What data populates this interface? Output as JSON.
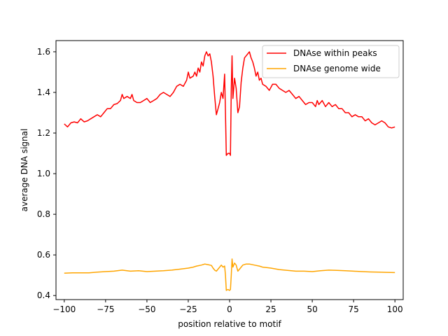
{
  "chart_data": {
    "type": "line",
    "title": "",
    "xlabel": "position relative to motif",
    "ylabel": "average DNA signal",
    "xlim": [
      -105,
      105
    ],
    "ylim": [
      0.38,
      1.655
    ],
    "x_ticks": [
      -100,
      -75,
      -50,
      -25,
      0,
      25,
      50,
      75,
      100
    ],
    "x_tick_labels": [
      "−100",
      "−75",
      "−50",
      "−25",
      "0",
      "25",
      "50",
      "75",
      "100"
    ],
    "y_ticks": [
      0.4,
      0.6,
      0.8,
      1.0,
      1.2,
      1.4,
      1.6
    ],
    "y_tick_labels": [
      "0.4",
      "0.6",
      "0.8",
      "1.0",
      "1.2",
      "1.4",
      "1.6"
    ],
    "grid": false,
    "legend_position": "top-right",
    "series": [
      {
        "name": "DNAse within peaks",
        "color": "#ff0000",
        "points": [
          [
            -100,
            1.245
          ],
          [
            -98,
            1.23
          ],
          [
            -96,
            1.25
          ],
          [
            -94,
            1.255
          ],
          [
            -92,
            1.25
          ],
          [
            -90,
            1.27
          ],
          [
            -88,
            1.255
          ],
          [
            -86,
            1.26
          ],
          [
            -84,
            1.27
          ],
          [
            -82,
            1.28
          ],
          [
            -80,
            1.29
          ],
          [
            -78,
            1.28
          ],
          [
            -76,
            1.3
          ],
          [
            -74,
            1.32
          ],
          [
            -72,
            1.32
          ],
          [
            -70,
            1.34
          ],
          [
            -68,
            1.345
          ],
          [
            -66,
            1.36
          ],
          [
            -65,
            1.39
          ],
          [
            -64,
            1.37
          ],
          [
            -62,
            1.38
          ],
          [
            -60,
            1.37
          ],
          [
            -59,
            1.39
          ],
          [
            -58,
            1.36
          ],
          [
            -56,
            1.35
          ],
          [
            -54,
            1.35
          ],
          [
            -52,
            1.36
          ],
          [
            -50,
            1.37
          ],
          [
            -48,
            1.35
          ],
          [
            -46,
            1.36
          ],
          [
            -44,
            1.37
          ],
          [
            -42,
            1.39
          ],
          [
            -40,
            1.4
          ],
          [
            -38,
            1.39
          ],
          [
            -36,
            1.38
          ],
          [
            -34,
            1.4
          ],
          [
            -32,
            1.43
          ],
          [
            -30,
            1.44
          ],
          [
            -28,
            1.43
          ],
          [
            -26,
            1.46
          ],
          [
            -25,
            1.5
          ],
          [
            -24,
            1.47
          ],
          [
            -22,
            1.48
          ],
          [
            -21,
            1.5
          ],
          [
            -20,
            1.48
          ],
          [
            -19,
            1.52
          ],
          [
            -18,
            1.5
          ],
          [
            -17,
            1.55
          ],
          [
            -16,
            1.53
          ],
          [
            -15,
            1.58
          ],
          [
            -14,
            1.6
          ],
          [
            -13,
            1.58
          ],
          [
            -12,
            1.59
          ],
          [
            -11,
            1.55
          ],
          [
            -10,
            1.48
          ],
          [
            -9,
            1.38
          ],
          [
            -8,
            1.29
          ],
          [
            -7,
            1.32
          ],
          [
            -6,
            1.35
          ],
          [
            -5,
            1.4
          ],
          [
            -4,
            1.37
          ],
          [
            -3,
            1.49
          ],
          [
            -2.5,
            1.3
          ],
          [
            -2,
            1.09
          ],
          [
            -1,
            1.1
          ],
          [
            0,
            1.1
          ],
          [
            0.5,
            1.09
          ],
          [
            1,
            1.42
          ],
          [
            1.5,
            1.58
          ],
          [
            2,
            1.37
          ],
          [
            3,
            1.47
          ],
          [
            4,
            1.42
          ],
          [
            5,
            1.3
          ],
          [
            6,
            1.33
          ],
          [
            7,
            1.45
          ],
          [
            8,
            1.52
          ],
          [
            9,
            1.57
          ],
          [
            10,
            1.58
          ],
          [
            11,
            1.59
          ],
          [
            12,
            1.6
          ],
          [
            13,
            1.57
          ],
          [
            14,
            1.55
          ],
          [
            15,
            1.52
          ],
          [
            16,
            1.48
          ],
          [
            17,
            1.5
          ],
          [
            18,
            1.46
          ],
          [
            19,
            1.47
          ],
          [
            20,
            1.44
          ],
          [
            22,
            1.43
          ],
          [
            24,
            1.41
          ],
          [
            26,
            1.44
          ],
          [
            28,
            1.44
          ],
          [
            30,
            1.42
          ],
          [
            32,
            1.41
          ],
          [
            34,
            1.4
          ],
          [
            36,
            1.41
          ],
          [
            38,
            1.39
          ],
          [
            40,
            1.37
          ],
          [
            42,
            1.38
          ],
          [
            44,
            1.36
          ],
          [
            46,
            1.34
          ],
          [
            48,
            1.35
          ],
          [
            50,
            1.35
          ],
          [
            52,
            1.33
          ],
          [
            53,
            1.36
          ],
          [
            54,
            1.34
          ],
          [
            56,
            1.36
          ],
          [
            58,
            1.33
          ],
          [
            60,
            1.35
          ],
          [
            62,
            1.33
          ],
          [
            64,
            1.34
          ],
          [
            66,
            1.32
          ],
          [
            68,
            1.32
          ],
          [
            70,
            1.3
          ],
          [
            72,
            1.3
          ],
          [
            74,
            1.28
          ],
          [
            76,
            1.29
          ],
          [
            78,
            1.28
          ],
          [
            80,
            1.28
          ],
          [
            82,
            1.26
          ],
          [
            84,
            1.27
          ],
          [
            86,
            1.25
          ],
          [
            88,
            1.24
          ],
          [
            90,
            1.25
          ],
          [
            92,
            1.26
          ],
          [
            94,
            1.25
          ],
          [
            96,
            1.23
          ],
          [
            98,
            1.225
          ],
          [
            100,
            1.23
          ]
        ]
      },
      {
        "name": "DNAse genome wide",
        "color": "#ffa500",
        "points": [
          [
            -100,
            0.51
          ],
          [
            -95,
            0.512
          ],
          [
            -90,
            0.512
          ],
          [
            -85,
            0.512
          ],
          [
            -80,
            0.515
          ],
          [
            -75,
            0.518
          ],
          [
            -70,
            0.52
          ],
          [
            -65,
            0.525
          ],
          [
            -60,
            0.52
          ],
          [
            -55,
            0.522
          ],
          [
            -50,
            0.518
          ],
          [
            -45,
            0.52
          ],
          [
            -40,
            0.522
          ],
          [
            -35,
            0.525
          ],
          [
            -30,
            0.53
          ],
          [
            -25,
            0.535
          ],
          [
            -22,
            0.54
          ],
          [
            -20,
            0.545
          ],
          [
            -17,
            0.55
          ],
          [
            -15,
            0.555
          ],
          [
            -13,
            0.552
          ],
          [
            -11,
            0.548
          ],
          [
            -10,
            0.535
          ],
          [
            -9,
            0.525
          ],
          [
            -8,
            0.52
          ],
          [
            -7,
            0.53
          ],
          [
            -6,
            0.54
          ],
          [
            -5,
            0.55
          ],
          [
            -4,
            0.54
          ],
          [
            -3,
            0.545
          ],
          [
            -2.5,
            0.5
          ],
          [
            -2,
            0.425
          ],
          [
            -1,
            0.43
          ],
          [
            0,
            0.425
          ],
          [
            0.5,
            0.43
          ],
          [
            1,
            0.5
          ],
          [
            1.5,
            0.58
          ],
          [
            2,
            0.54
          ],
          [
            3,
            0.56
          ],
          [
            4,
            0.55
          ],
          [
            5,
            0.52
          ],
          [
            6,
            0.53
          ],
          [
            7,
            0.54
          ],
          [
            8,
            0.55
          ],
          [
            10,
            0.555
          ],
          [
            12,
            0.555
          ],
          [
            15,
            0.55
          ],
          [
            18,
            0.545
          ],
          [
            20,
            0.54
          ],
          [
            25,
            0.535
          ],
          [
            30,
            0.528
          ],
          [
            35,
            0.524
          ],
          [
            40,
            0.52
          ],
          [
            45,
            0.52
          ],
          [
            50,
            0.518
          ],
          [
            55,
            0.522
          ],
          [
            60,
            0.525
          ],
          [
            65,
            0.524
          ],
          [
            70,
            0.522
          ],
          [
            75,
            0.52
          ],
          [
            80,
            0.518
          ],
          [
            85,
            0.516
          ],
          [
            90,
            0.515
          ],
          [
            95,
            0.514
          ],
          [
            100,
            0.513
          ]
        ]
      }
    ]
  }
}
